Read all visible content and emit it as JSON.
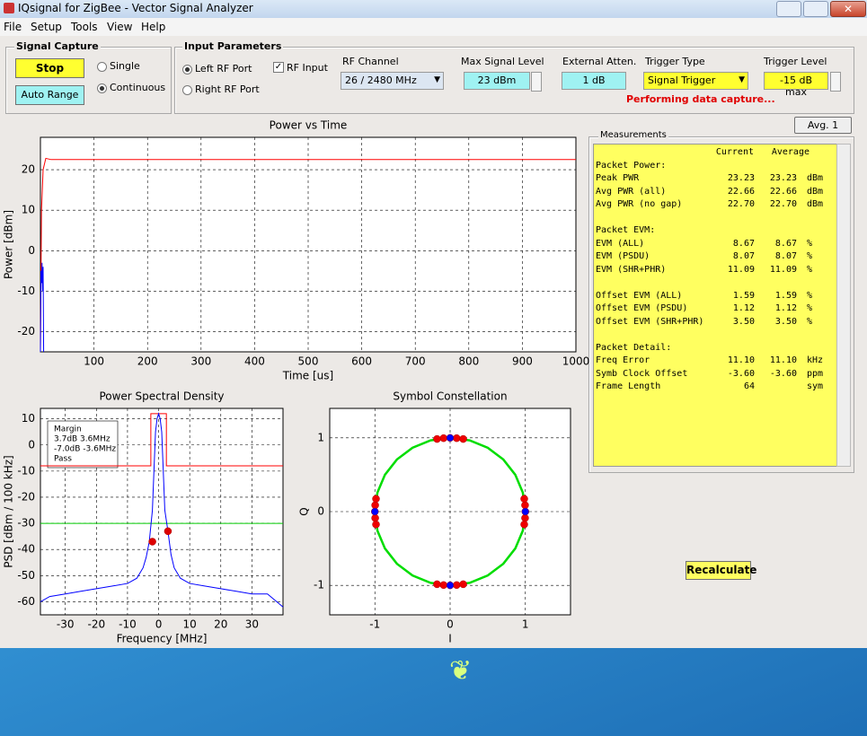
{
  "window": {
    "title": "IQsignal for ZigBee - Vector Signal Analyzer"
  },
  "menu": [
    "File",
    "Setup",
    "Tools",
    "View",
    "Help"
  ],
  "signal_capture": {
    "title": "Signal Capture",
    "stop": "Stop",
    "auto_range": "Auto Range",
    "modes": [
      "Single",
      "Continuous"
    ]
  },
  "input_parameters": {
    "title": "Input Parameters",
    "ports": [
      "Left RF Port",
      "Right RF Port"
    ],
    "rf_input": "RF Input",
    "rf_channel": {
      "label": "RF Channel",
      "value": "26  /  2480 MHz"
    },
    "max_signal_level": {
      "label": "Max Signal Level",
      "value": "23 dBm"
    },
    "external_atten": {
      "label": "External Atten.",
      "value": "1 dB"
    },
    "trigger_type": {
      "label": "Trigger Type",
      "value": "Signal Trigger"
    },
    "trigger_level": {
      "label": "Trigger Level",
      "value": "-15 dB max"
    },
    "status": "Performing data capture..."
  },
  "avg_button": "Avg. 1",
  "measurements": {
    "title": "Measurements",
    "header": [
      "Current",
      "Average"
    ],
    "sections": [
      {
        "title": "Packet Power:",
        "rows": [
          {
            "label": "Peak PWR",
            "current": "23.23",
            "average": "23.23",
            "unit": "dBm"
          },
          {
            "label": "Avg PWR (all)",
            "current": "22.66",
            "average": "22.66",
            "unit": "dBm"
          },
          {
            "label": "Avg PWR (no gap)",
            "current": "22.70",
            "average": "22.70",
            "unit": "dBm"
          }
        ]
      },
      {
        "title": "Packet EVM:",
        "rows": [
          {
            "label": "EVM (ALL)",
            "current": "8.67",
            "average": "8.67",
            "unit": "%"
          },
          {
            "label": "EVM (PSDU)",
            "current": "8.07",
            "average": "8.07",
            "unit": "%"
          },
          {
            "label": "EVM (SHR+PHR)",
            "current": "11.09",
            "average": "11.09",
            "unit": "%"
          }
        ]
      },
      {
        "rows": [
          {
            "label": "Offset EVM (ALL)",
            "current": "1.59",
            "average": "1.59",
            "unit": "%"
          },
          {
            "label": "Offset EVM (PSDU)",
            "current": "1.12",
            "average": "1.12",
            "unit": "%"
          },
          {
            "label": "Offset EVM (SHR+PHR)",
            "current": "3.50",
            "average": "3.50",
            "unit": "%"
          }
        ]
      },
      {
        "title": "Packet Detail:",
        "rows": [
          {
            "label": "Freq Error",
            "current": "11.10",
            "average": "11.10",
            "unit": "kHz"
          },
          {
            "label": "Symb Clock Offset",
            "current": "-3.60",
            "average": "-3.60",
            "unit": "ppm"
          },
          {
            "label": "Frame Length",
            "current": "64",
            "unit": "sym"
          }
        ]
      }
    ]
  },
  "recalculate": "Recalculate",
  "charts": [
    {
      "type": "line",
      "title": "Power vs Time",
      "xlabel": "Time [us]",
      "ylabel": "Power [dBm]",
      "xlim": [
        0,
        1000
      ],
      "ylim": [
        -25,
        28
      ],
      "xticks": [
        100,
        200,
        300,
        400,
        500,
        600,
        700,
        800,
        900,
        1000
      ],
      "yticks": [
        -20,
        -10,
        0,
        10,
        20
      ],
      "grid": true,
      "series": [
        {
          "color": "#ff0000",
          "style": "line",
          "x": [
            0,
            2,
            5,
            10,
            20,
            1000
          ],
          "values": [
            -25,
            10,
            20,
            22.8,
            22.5,
            22.5
          ]
        },
        {
          "color": "#0000ff",
          "style": "line",
          "x": [
            0,
            1,
            2,
            3,
            4,
            5,
            6
          ],
          "values": [
            -25,
            -5,
            -8,
            -3,
            -10,
            -4,
            -25
          ]
        }
      ]
    },
    {
      "type": "line",
      "title": "Power Spectral Density",
      "xlabel": "Frequency [MHz]",
      "ylabel": "PSD [dBm / 100 kHz]",
      "xlim": [
        -38,
        40
      ],
      "ylim": [
        -65,
        14
      ],
      "xticks": [
        -30,
        -20,
        -10,
        0,
        10,
        20,
        30
      ],
      "yticks": [
        -60,
        -50,
        -40,
        -30,
        -20,
        -10,
        0,
        10
      ],
      "grid": true,
      "annotations": [
        "Margin",
        "3.7dB  3.6MHz",
        "-7.0dB  -3.6MHz",
        "Pass"
      ],
      "series": [
        {
          "color": "#00cc00",
          "style": "line",
          "x": [
            -38,
            40
          ],
          "values": [
            -30,
            -30
          ]
        },
        {
          "color": "#ff0000",
          "style": "line",
          "x": [
            -38,
            -2.5,
            -2.5,
            2.5,
            2.5,
            40
          ],
          "values": [
            -8,
            -8,
            12,
            12,
            -8,
            -8
          ]
        },
        {
          "color": "#0000ff",
          "style": "line",
          "x": [
            -38,
            -35,
            -30,
            -25,
            -20,
            -15,
            -10,
            -7,
            -5,
            -4,
            -3,
            -2,
            -1.5,
            -1,
            -0.5,
            0,
            0.5,
            1,
            1.5,
            2,
            3,
            4,
            5,
            7,
            10,
            15,
            20,
            25,
            30,
            35,
            40
          ],
          "values": [
            -60,
            -58,
            -57,
            -56,
            -55,
            -54,
            -53,
            -51,
            -47,
            -43,
            -37,
            -25,
            -10,
            5,
            10,
            12,
            10,
            5,
            -10,
            -25,
            -33,
            -42,
            -47,
            -51,
            -53,
            -54,
            -55,
            -56,
            -57,
            -57,
            -62
          ]
        },
        {
          "color": "#dd0000",
          "style": "markers",
          "x": [
            -2,
            3
          ],
          "values": [
            -37,
            -33
          ]
        }
      ]
    },
    {
      "type": "line",
      "title": "Symbol Constellation",
      "xlabel": "I",
      "ylabel": "Q",
      "xlim": [
        -1.6,
        1.6
      ],
      "ylim": [
        -1.4,
        1.4
      ],
      "xticks": [
        -1,
        0,
        1
      ],
      "yticks": [
        -1,
        0,
        1
      ],
      "grid": true,
      "series": [
        {
          "color": "#00dd00",
          "style": "line",
          "x": [
            1,
            0.966,
            0.866,
            0.707,
            0.5,
            0.259,
            0,
            -0.259,
            -0.5,
            -0.707,
            -0.866,
            -0.966,
            -1,
            -0.966,
            -0.866,
            -0.707,
            -0.5,
            -0.259,
            0,
            0.259,
            0.5,
            0.707,
            0.866,
            0.966,
            1
          ],
          "values": [
            0,
            0.259,
            0.5,
            0.707,
            0.866,
            0.966,
            1,
            0.966,
            0.866,
            0.707,
            0.5,
            0.259,
            0,
            -0.259,
            -0.5,
            -0.707,
            -0.866,
            -0.966,
            -1,
            -0.966,
            -0.866,
            -0.707,
            -0.5,
            -0.259,
            0
          ]
        },
        {
          "color": "#ee0000",
          "style": "markers",
          "x": [
            0.996,
            0.996,
            0.985,
            0.985,
            -0.996,
            -0.996,
            -0.985,
            -0.985,
            0.087,
            -0.087,
            0.174,
            -0.174,
            0.087,
            -0.087,
            0.174,
            -0.174
          ],
          "values": [
            0.087,
            -0.087,
            0.174,
            -0.174,
            0.087,
            -0.087,
            0.174,
            -0.174,
            0.996,
            0.996,
            0.985,
            0.985,
            -0.996,
            -0.996,
            -0.985,
            -0.985
          ]
        },
        {
          "color": "#0000ff",
          "style": "markers",
          "x": [
            1,
            0,
            -1,
            0
          ],
          "values": [
            0,
            1,
            0,
            -1
          ]
        }
      ]
    }
  ]
}
